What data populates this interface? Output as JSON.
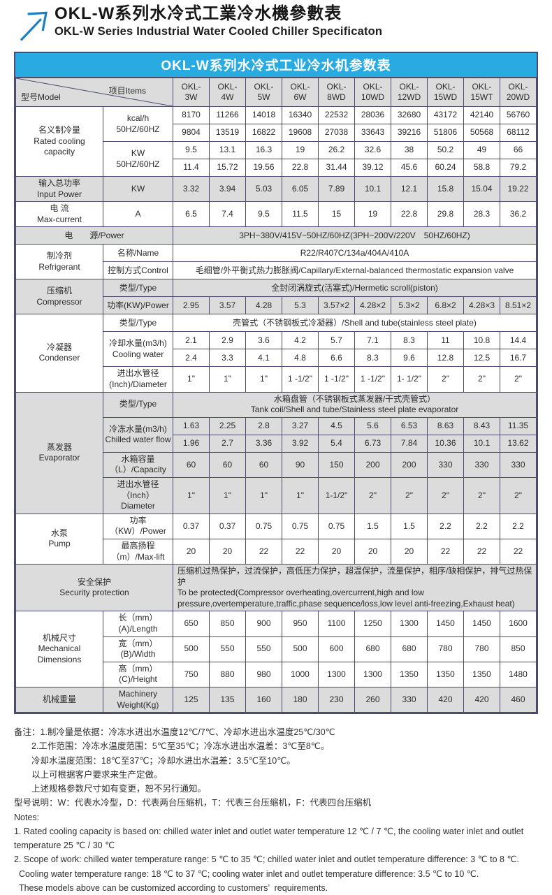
{
  "page": {
    "title_zh": "OKL-W系列水冷式工業冷水機參數表",
    "title_en": "OKL-W Series Industrial Water Cooled Chiller Specificaton",
    "colors": {
      "bar_blue": "#29abe2",
      "arrow_blue": "#1b7fc4",
      "shade_gray": "#dcdcdc",
      "border": "#4b4b70"
    }
  },
  "table": {
    "title": "OKL-W系列水冷式工业冷水机参数表",
    "corner": {
      "model": "型号Model",
      "items": "项目Items"
    },
    "models": [
      {
        "line1": "OKL-",
        "line2": "3W"
      },
      {
        "line1": "OKL-",
        "line2": "4W"
      },
      {
        "line1": "OKL-",
        "line2": "5W"
      },
      {
        "line1": "OKL-",
        "line2": "6W"
      },
      {
        "line1": "OKL-",
        "line2": "8WD"
      },
      {
        "line1": "OKL-",
        "line2": "10WD"
      },
      {
        "line1": "OKL-",
        "line2": "12WD"
      },
      {
        "line1": "OKL-",
        "line2": "15WD"
      },
      {
        "line1": "OKL-",
        "line2": "15WT"
      },
      {
        "line1": "OKL-",
        "line2": "20WD"
      }
    ],
    "rows": [
      {
        "shade": false,
        "section": {
          "label": "名义制冷量\nRated cooling\ncapacity",
          "rowspan": 4
        },
        "item": {
          "label": "kcal/h\n50HZ/60HZ",
          "rowspan": 2
        },
        "values": [
          "8170",
          "11266",
          "14018",
          "16340",
          "22532",
          "28036",
          "32680",
          "43172",
          "42140",
          "56760"
        ]
      },
      {
        "shade": false,
        "values": [
          "9804",
          "13519",
          "16822",
          "19608",
          "27038",
          "33643",
          "39216",
          "51806",
          "50568",
          "68112"
        ]
      },
      {
        "shade": false,
        "item": {
          "label": "KW\n50HZ/60HZ",
          "rowspan": 2
        },
        "values": [
          "9.5",
          "13.1",
          "16.3",
          "19",
          "26.2",
          "32.6",
          "38",
          "50.2",
          "49",
          "66"
        ]
      },
      {
        "shade": false,
        "values": [
          "11.4",
          "15.72",
          "19.56",
          "22.8",
          "31.44",
          "39.12",
          "45.6",
          "60.24",
          "58.8",
          "79.2"
        ]
      },
      {
        "shade": true,
        "section": {
          "label": "输入总功率\nInput Power",
          "rowspan": 1
        },
        "item": {
          "label": "KW",
          "rowspan": 1
        },
        "values": [
          "3.32",
          "3.94",
          "5.03",
          "6.05",
          "7.89",
          "10.1",
          "12.1",
          "15.8",
          "15.04",
          "19.22"
        ]
      },
      {
        "shade": false,
        "section": {
          "label": "电 流\nMax-current",
          "rowspan": 1
        },
        "item": {
          "label": "A",
          "rowspan": 1
        },
        "values": [
          "6.5",
          "7.4",
          "9.5",
          "11.5",
          "15",
          "19",
          "22.8",
          "29.8",
          "28.3",
          "36.2"
        ]
      },
      {
        "shade": true,
        "merged": "电　　源/Power",
        "span": "3PH~380V/415V~50HZ/60HZ(3PH~200V/220V　50HZ/60HZ)"
      },
      {
        "shade": false,
        "section": {
          "label": "制冷剂\nRefrigerant",
          "rowspan": 2
        },
        "item": {
          "label": "名称/Name"
        },
        "span": "R22/R407C/134a/404A/410A"
      },
      {
        "shade": false,
        "item": {
          "label": "控制方式Control"
        },
        "span": "毛细管/外平衡式热力膨胀阀/Capillary/External-balanced thermostatic expansion valve"
      },
      {
        "shade": true,
        "section": {
          "label": "压缩机\nCompressor",
          "rowspan": 2
        },
        "item": {
          "label": "类型/Type"
        },
        "span": "全封闭涡旋式(活塞式)/Hermetic scroll(piston)"
      },
      {
        "shade": true,
        "item": {
          "label": "功率(KW)/Power"
        },
        "values": [
          "2.95",
          "3.57",
          "4.28",
          "5.3",
          "3.57×2",
          "4.28×2",
          "5.3×2",
          "6.8×2",
          "4.28×3",
          "8.51×2"
        ]
      },
      {
        "shade": false,
        "section": {
          "label": "冷凝器\nCondenser",
          "rowspan": 4
        },
        "item": {
          "label": "类型/Type"
        },
        "span": "壳管式（不锈钢板式冷凝器）/Shell and tube(stainless steel plate)"
      },
      {
        "shade": false,
        "item": {
          "label": "冷却水量(m3/h)\nCooling water",
          "rowspan": 2
        },
        "values": [
          "2.1",
          "2.9",
          "3.6",
          "4.2",
          "5.7",
          "7.1",
          "8.3",
          "11",
          "10.8",
          "14.4"
        ]
      },
      {
        "shade": false,
        "values": [
          "2.4",
          "3.3",
          "4.1",
          "4.8",
          "6.6",
          "8.3",
          "9.6",
          "12.8",
          "12.5",
          "16.7"
        ]
      },
      {
        "shade": false,
        "item": {
          "label": "进出水管径\n(Inch)/Diameter"
        },
        "values": [
          "1\"",
          "1\"",
          "1\"",
          "1 -1/2\"",
          "1 -1/2\"",
          "1 -1/2\"",
          "1- 1/2\"",
          "2\"",
          "2\"",
          "2\""
        ]
      },
      {
        "shade": true,
        "section": {
          "label": "蒸发器\nEvaporator",
          "rowspan": 5
        },
        "item": {
          "label": "类型/Type"
        },
        "span": "水箱盘管（不锈钢板式蒸发器/干式壳管式）\nTank coil/Shell and tube/Stainless steel plate evaporator"
      },
      {
        "shade": true,
        "item": {
          "label": "冷冻水量(m3/h)\nChilled water flow",
          "rowspan": 2
        },
        "values": [
          "1.63",
          "2.25",
          "2.8",
          "3.27",
          "4.5",
          "5.6",
          "6.53",
          "8.63",
          "8.43",
          "11.35"
        ]
      },
      {
        "shade": true,
        "values": [
          "1.96",
          "2.7",
          "3.36",
          "3.92",
          "5.4",
          "6.73",
          "7.84",
          "10.36",
          "10.1",
          "13.62"
        ]
      },
      {
        "shade": true,
        "item": {
          "label": "水箱容量（L）/Capacity"
        },
        "values": [
          "60",
          "60",
          "60",
          "90",
          "150",
          "200",
          "200",
          "330",
          "330",
          "330"
        ]
      },
      {
        "shade": true,
        "item": {
          "label": "进出水管径（Inch）\nDiameter"
        },
        "values": [
          "1\"",
          "1\"",
          "1\"",
          "1\"",
          "1-1/2\"",
          "2\"",
          "2\"",
          "2\"",
          "2\"",
          "2\""
        ]
      },
      {
        "shade": false,
        "section": {
          "label": "水泵\nPump",
          "rowspan": 2
        },
        "item": {
          "label": "功率（KW）/Power"
        },
        "values": [
          "0.37",
          "0.37",
          "0.75",
          "0.75",
          "0.75",
          "1.5",
          "1.5",
          "2.2",
          "2.2",
          "2.2"
        ]
      },
      {
        "shade": false,
        "item": {
          "label": "最高扬程（m）/Max-lift"
        },
        "values": [
          "20",
          "20",
          "22",
          "22",
          "20",
          "20",
          "20",
          "22",
          "22",
          "22"
        ]
      },
      {
        "shade": true,
        "merged": "安全保护\nSecurity protection",
        "span": "压缩机过热保护，过流保护，高低压力保护，超温保护，流量保护，相序/缺相保护，排气过热保护\nTo be protected(Compressor overheating,overcurrent,high and low\npressure,overtemperature,traffic,phase sequence/loss,low level anti-freezing,Exhaust heat)",
        "span_align": "left"
      },
      {
        "shade": false,
        "section": {
          "label": "机械尺寸\nMechanical\nDimensions",
          "rowspan": 3
        },
        "item": {
          "label": "长（mm）(A)/Length"
        },
        "values": [
          "650",
          "850",
          "900",
          "950",
          "1100",
          "1250",
          "1300",
          "1450",
          "1450",
          "1600"
        ]
      },
      {
        "shade": false,
        "item": {
          "label": "宽（mm）(B)/Width"
        },
        "values": [
          "500",
          "550",
          "550",
          "500",
          "600",
          "680",
          "680",
          "780",
          "780",
          "850"
        ]
      },
      {
        "shade": false,
        "item": {
          "label": "高（mm）(C)/Height"
        },
        "values": [
          "750",
          "880",
          "980",
          "1000",
          "1300",
          "1300",
          "1350",
          "1350",
          "1350",
          "1480"
        ]
      },
      {
        "shade": true,
        "section": {
          "label": "机械重量",
          "rowspan": 1
        },
        "item": {
          "label": "Machinery Weight(Kg)"
        },
        "values": [
          "125",
          "135",
          "160",
          "180",
          "230",
          "260",
          "330",
          "420",
          "420",
          "460"
        ]
      }
    ]
  },
  "notes": {
    "lines": [
      "备注：1.制冷量是依据：冷冻水进出水温度12℃/7℃、冷却水进出水温度25℃/30℃",
      "　　2.工作范围：冷冻水温度范围：5℃至35℃；冷冻水进出水温差：3℃至8℃。",
      "　　冷却水温度范围：18℃至37℃；冷却水进出水温差：3.5℃至10℃。",
      "　　以上可根据客户要求来生产定做。",
      "　　上述规格参数尺寸如有变更，恕不另行通知。",
      "型号说明：W：代表水冷型，D：代表两台压缩机，T：代表三台压缩机，F：代表四台压缩机",
      "Notes:",
      "1. Rated cooling capacity is based on: chilled water inlet and outlet water temperature 12 ℃ / 7 ℃, the cooling water inlet and outlet",
      "temperature 25 ℃ / 30 ℃",
      "2. Scope of work: chilled water temperature range: 5 ℃ to 35 ℃; chilled water inlet and outlet temperature difference: 3 ℃ to 8 ℃.",
      "  Cooling water temperature range: 18 ℃ to 37 ℃; cooling water inlet and outlet temperature difference: 3.5 ℃ to 10 ℃.",
      "  These models above can be customized according to customers’  requirements."
    ]
  }
}
